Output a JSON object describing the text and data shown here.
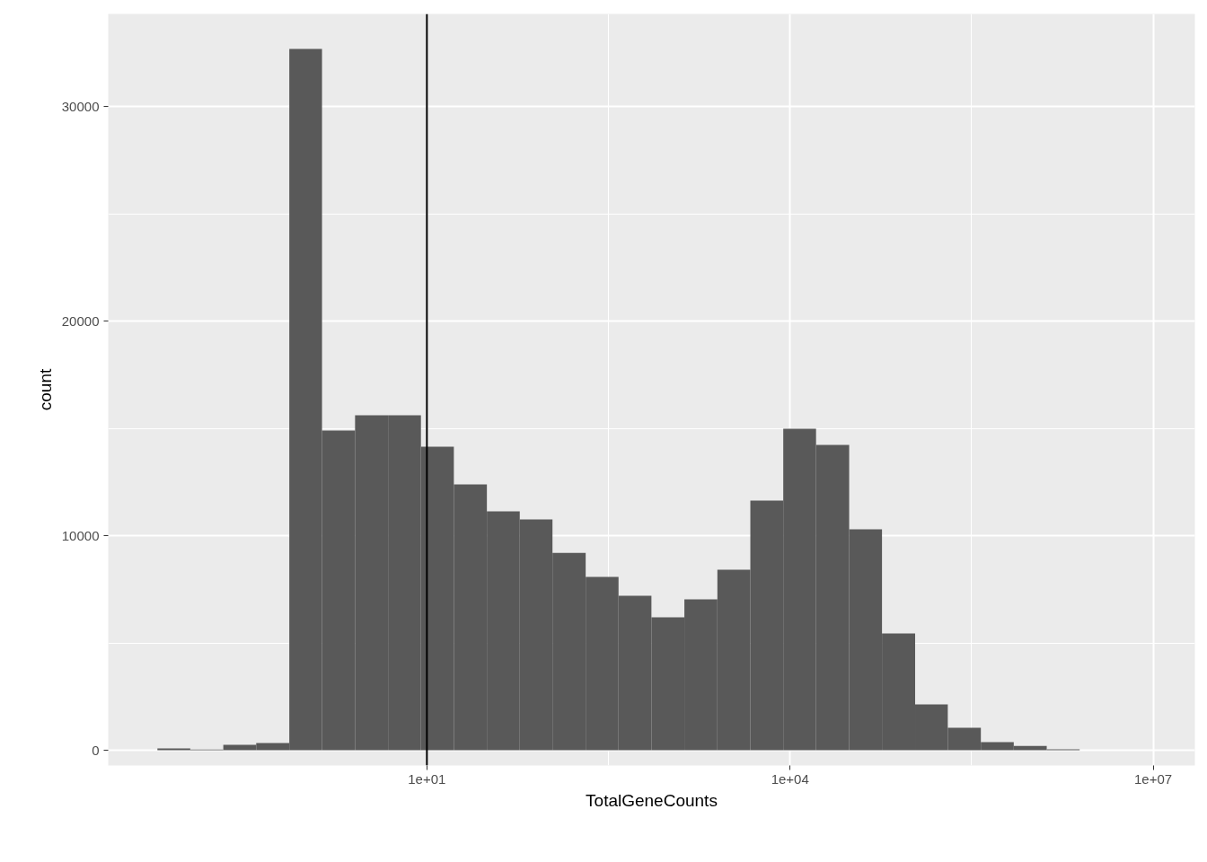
{
  "chart_data": {
    "type": "histogram",
    "xlabel": "TotalGeneCounts",
    "ylabel": "count",
    "log": "x",
    "color": "#595959",
    "bins": [
      0.0594,
      0.111,
      0.208,
      0.389,
      0.73,
      1.36,
      2.55,
      4.78,
      8.93,
      16.7,
      31.3,
      58.5,
      109,
      205,
      383,
      716,
      1340,
      2510,
      4700,
      8790,
      16400,
      30800,
      57500,
      108000,
      201000,
      377000,
      705000,
      1320000,
      2470000,
      4610000,
      8630000
    ],
    "values": [
      80,
      30,
      250,
      330,
      32680,
      14900,
      15610,
      15610,
      14140,
      12390,
      11130,
      10750,
      9200,
      8080,
      7200,
      6190,
      7030,
      8410,
      11630,
      14980,
      14230,
      10290,
      5440,
      2130,
      1050,
      380,
      200,
      40,
      0,
      0
    ],
    "xlim": [
      0.0233,
      22100000
    ],
    "xticks": [
      {
        "value": 10,
        "label": "1e+01"
      },
      {
        "value": 10000,
        "label": "1e+04"
      },
      {
        "value": 10000000,
        "label": "1e+07"
      }
    ],
    "ylim": [
      -711,
      34310
    ],
    "yticks": [
      0,
      10000,
      20000,
      30000
    ],
    "grid": true,
    "ref_lines": [
      {
        "axis": "x",
        "value": 10,
        "label": null,
        "color": "#000000"
      }
    ]
  }
}
